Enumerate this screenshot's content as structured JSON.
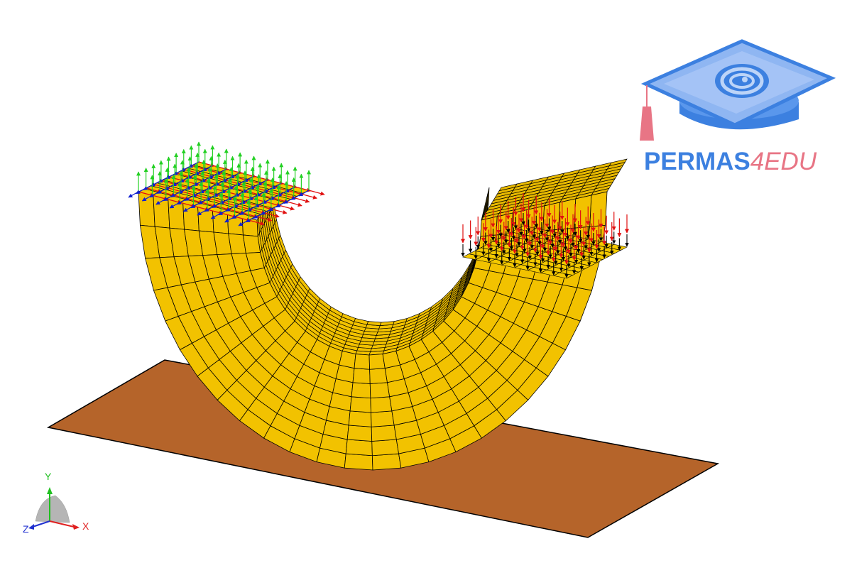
{
  "logo": {
    "name_main": "PERMAS",
    "name_accent": "4EDU"
  },
  "triad": {
    "x_label": "X",
    "y_label": "Y",
    "z_label": "Z",
    "x_color": "#e02020",
    "y_color": "#20c020",
    "z_color": "#2030d0"
  },
  "model": {
    "body_color": "#f2c200",
    "plate_color": "#b5642a",
    "load_colors": {
      "pressure_arrows": "#e01010",
      "support_x": "#e01010",
      "support_y": "#22d022",
      "support_z": "#1020d0"
    }
  }
}
